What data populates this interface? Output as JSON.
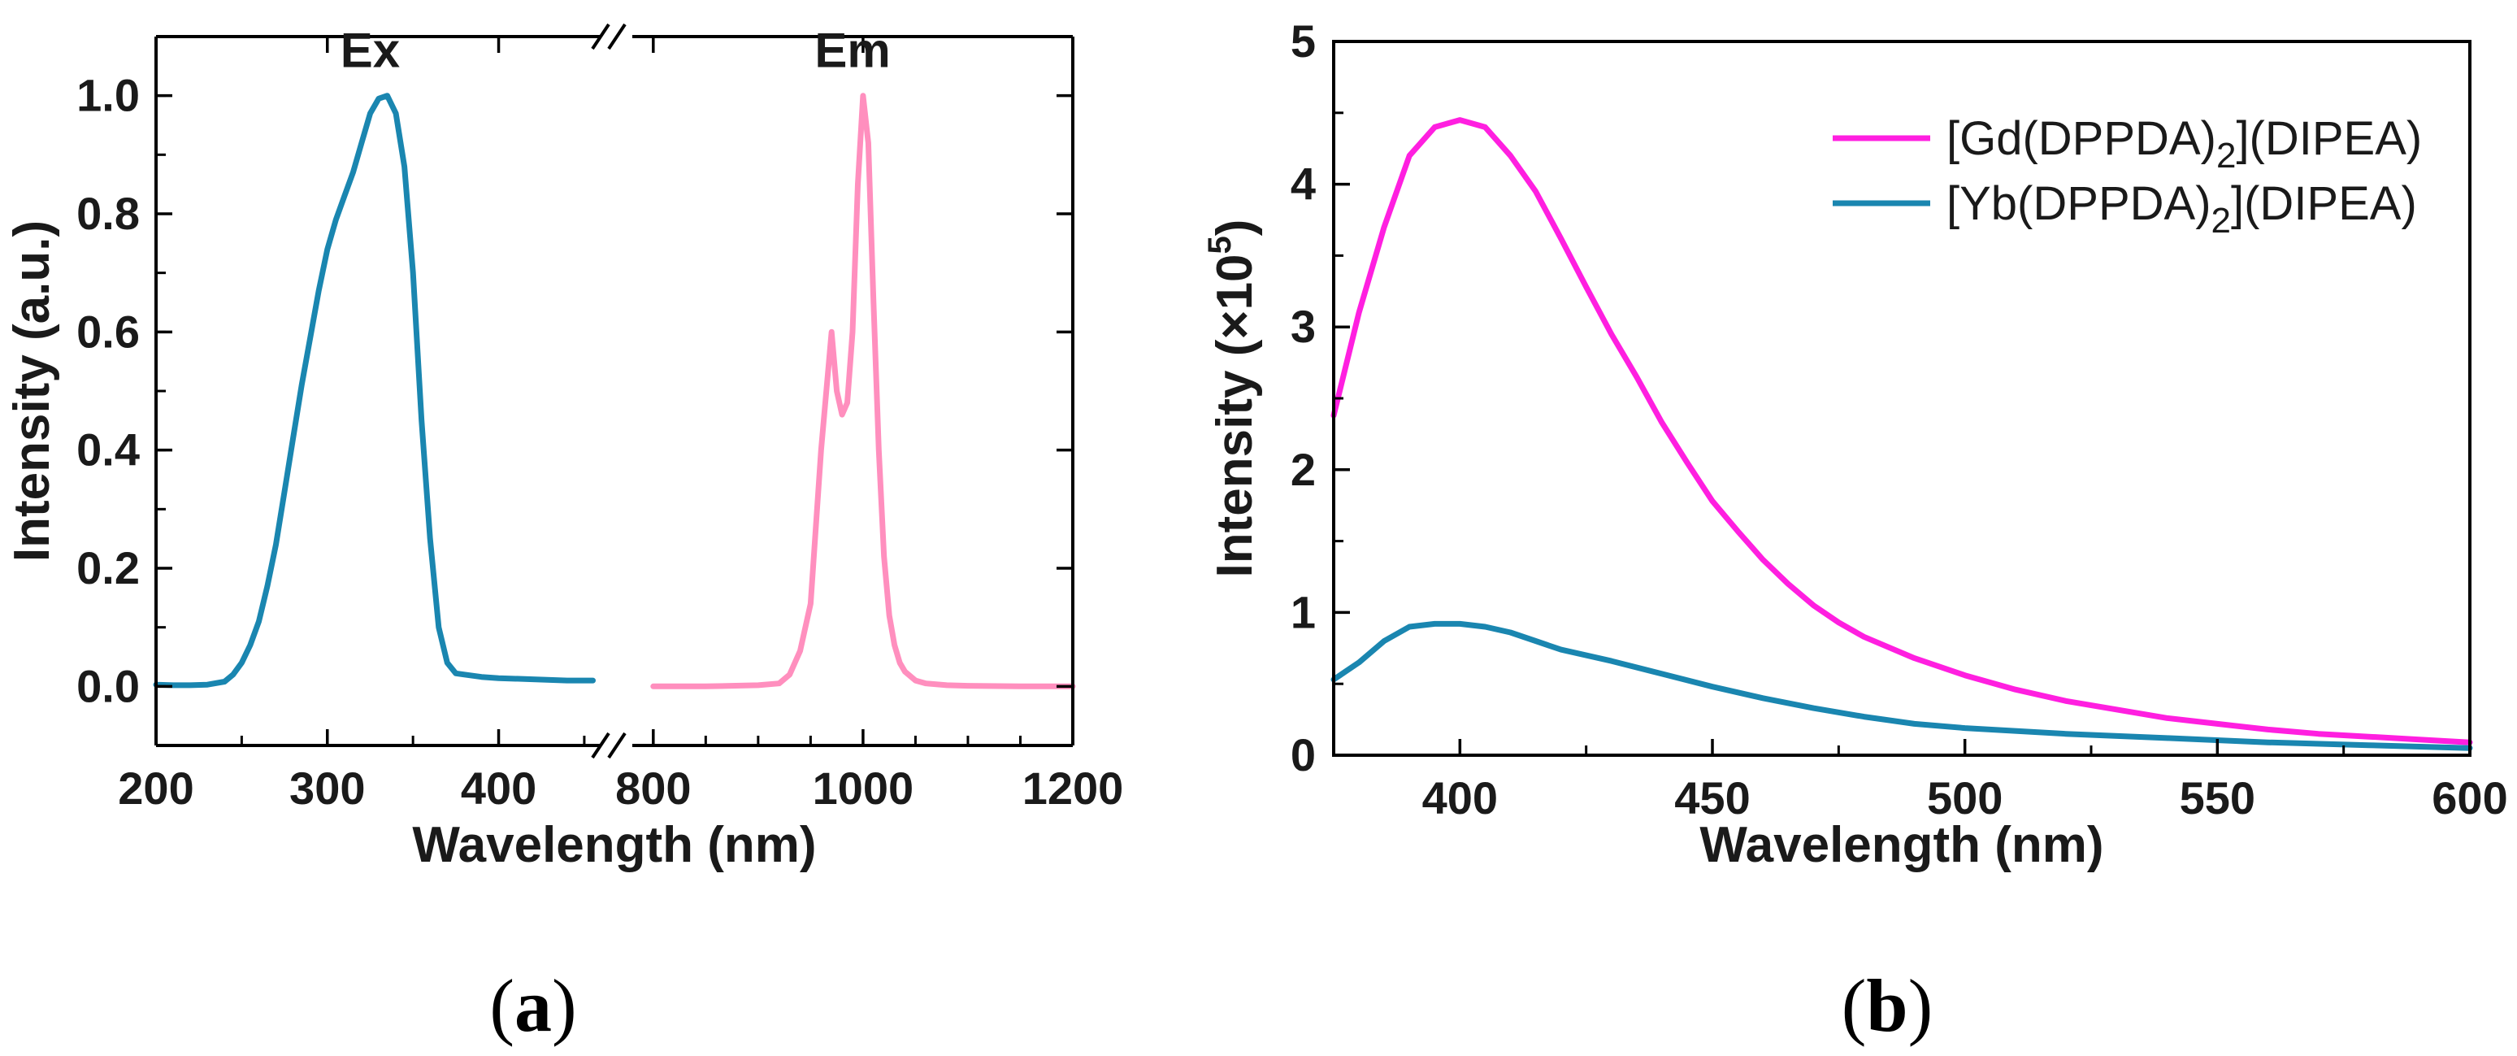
{
  "chart_data": [
    {
      "panel": "a",
      "type": "line",
      "title": "",
      "xlabel": "Wavelength (nm)",
      "ylabel": "Intensity (a.u.)",
      "ylim": [
        -0.1,
        1.1
      ],
      "axis_break": "between 450 and 800 nm",
      "x_segments": [
        {
          "range": [
            200,
            460
          ],
          "ticks": [
            200,
            300,
            400
          ]
        },
        {
          "range": [
            780,
            1200
          ],
          "ticks": [
            800,
            1000,
            1200
          ]
        }
      ],
      "yticks": [
        0.0,
        0.2,
        0.4,
        0.6,
        0.8,
        1.0
      ],
      "ytick_labels": [
        "0.0",
        "0.2",
        "0.4",
        "0.6",
        "0.8",
        "1.0"
      ],
      "xtick_labels": [
        "200",
        "300",
        "400",
        "800",
        "1000",
        "1200"
      ],
      "annotations": [
        {
          "text": "Ex",
          "x": 325,
          "y": 1.04
        },
        {
          "text": "Em",
          "x": 990,
          "y": 1.04
        }
      ],
      "series": [
        {
          "name": "Ex",
          "segment": 0,
          "color": "#1a86b0",
          "x": [
            200,
            210,
            220,
            230,
            240,
            245,
            250,
            255,
            260,
            265,
            270,
            275,
            280,
            285,
            290,
            295,
            300,
            305,
            310,
            315,
            320,
            325,
            330,
            335,
            340,
            345,
            350,
            355,
            360,
            365,
            370,
            375,
            380,
            390,
            400,
            420,
            440,
            455
          ],
          "y": [
            0.003,
            0.002,
            0.002,
            0.003,
            0.008,
            0.02,
            0.04,
            0.07,
            0.11,
            0.17,
            0.24,
            0.33,
            0.42,
            0.51,
            0.59,
            0.67,
            0.74,
            0.79,
            0.83,
            0.87,
            0.92,
            0.97,
            0.995,
            1.0,
            0.97,
            0.88,
            0.7,
            0.45,
            0.25,
            0.1,
            0.04,
            0.022,
            0.02,
            0.016,
            0.014,
            0.012,
            0.01,
            0.01
          ]
        },
        {
          "name": "Em",
          "segment": 1,
          "color": "#ff8fbe",
          "x": [
            800,
            850,
            900,
            920,
            930,
            940,
            950,
            960,
            970,
            975,
            980,
            985,
            990,
            995,
            1000,
            1005,
            1010,
            1015,
            1020,
            1025,
            1030,
            1035,
            1040,
            1050,
            1060,
            1080,
            1100,
            1150,
            1200
          ],
          "y": [
            0.0,
            0.0,
            0.002,
            0.005,
            0.02,
            0.06,
            0.14,
            0.4,
            0.6,
            0.5,
            0.46,
            0.48,
            0.6,
            0.85,
            1.0,
            0.92,
            0.65,
            0.4,
            0.22,
            0.12,
            0.07,
            0.04,
            0.025,
            0.01,
            0.005,
            0.002,
            0.001,
            0.0,
            0.0
          ]
        }
      ]
    },
    {
      "panel": "b",
      "type": "line",
      "title": "",
      "xlabel": "Wavelength (nm)",
      "ylabel_main": "Intensity (×10",
      "ylabel_sup": "5",
      "ylabel_end": ")",
      "xlim": [
        375,
        600
      ],
      "ylim": [
        0,
        5
      ],
      "xticks": [
        400,
        450,
        500,
        550,
        600
      ],
      "xtick_labels": [
        "400",
        "450",
        "500",
        "550",
        "600"
      ],
      "yticks": [
        0,
        1,
        2,
        3,
        4,
        5
      ],
      "ytick_labels": [
        "0",
        "1",
        "2",
        "3",
        "4",
        "5"
      ],
      "legend": "top-right",
      "series": [
        {
          "name": "[Gd(DPPDA)2](DIPEA)",
          "name_parts": [
            "[Gd(DPPDA)",
            "2",
            "](DIPEA)"
          ],
          "color": "#ff1fe0",
          "x": [
            375,
            380,
            385,
            390,
            395,
            400,
            405,
            410,
            415,
            420,
            425,
            430,
            435,
            440,
            445,
            450,
            455,
            460,
            465,
            470,
            475,
            480,
            490,
            500,
            510,
            520,
            530,
            540,
            550,
            560,
            570,
            580,
            590,
            600
          ],
          "y": [
            2.38,
            3.1,
            3.7,
            4.2,
            4.4,
            4.45,
            4.4,
            4.2,
            3.95,
            3.62,
            3.28,
            2.95,
            2.65,
            2.33,
            2.05,
            1.78,
            1.57,
            1.37,
            1.2,
            1.05,
            0.93,
            0.83,
            0.68,
            0.56,
            0.46,
            0.38,
            0.32,
            0.26,
            0.22,
            0.18,
            0.15,
            0.13,
            0.11,
            0.09
          ]
        },
        {
          "name": "[Yb(DPPDA)2](DIPEA)",
          "name_parts": [
            "[Yb(DPPDA)",
            "2",
            "](DIPEA)"
          ],
          "color": "#1a86b0",
          "x": [
            375,
            380,
            385,
            390,
            395,
            400,
            405,
            410,
            415,
            420,
            430,
            440,
            450,
            460,
            470,
            480,
            490,
            500,
            520,
            540,
            560,
            580,
            600
          ],
          "y": [
            0.53,
            0.65,
            0.8,
            0.9,
            0.92,
            0.92,
            0.9,
            0.86,
            0.8,
            0.74,
            0.66,
            0.57,
            0.48,
            0.4,
            0.33,
            0.27,
            0.22,
            0.19,
            0.15,
            0.12,
            0.09,
            0.07,
            0.05
          ]
        }
      ]
    }
  ],
  "labels": {
    "panel_a": {
      "open": "(",
      "letter": "a",
      "close": ")"
    },
    "panel_b": {
      "open": "(",
      "letter": "b",
      "close": ")"
    },
    "break_mark": "//"
  }
}
